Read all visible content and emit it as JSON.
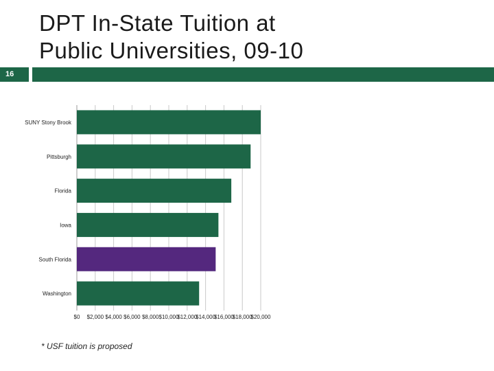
{
  "slide": {
    "number": "16",
    "title_line1": "DPT In-State Tuition at",
    "title_line2": "Public Universities, 09-10",
    "footnote": "* USF tuition is proposed"
  },
  "colors": {
    "theme_green": "#1d6647",
    "bar_default": "#1d6647",
    "bar_highlight": "#54287e",
    "gridline": "#c8c8c8"
  },
  "chart_data": {
    "type": "bar",
    "orientation": "horizontal",
    "categories": [
      "SUNY Stony Brook",
      "Pittsburgh",
      "Florida",
      "Iowa",
      "South Florida",
      "Washington"
    ],
    "values": [
      20000,
      18900,
      16800,
      15400,
      15100,
      13300
    ],
    "highlight_index": 4,
    "xlim": [
      0,
      20000
    ],
    "xticks": [
      0,
      2000,
      4000,
      6000,
      8000,
      10000,
      12000,
      14000,
      16000,
      18000,
      20000
    ],
    "xtick_labels": [
      "$0",
      "$2,000",
      "$4,000",
      "$6,000",
      "$8,000",
      "$10,000",
      "$12,000",
      "$14,000",
      "$16,000",
      "$18,000",
      "$20,000"
    ],
    "grid": true,
    "legend": "none"
  }
}
